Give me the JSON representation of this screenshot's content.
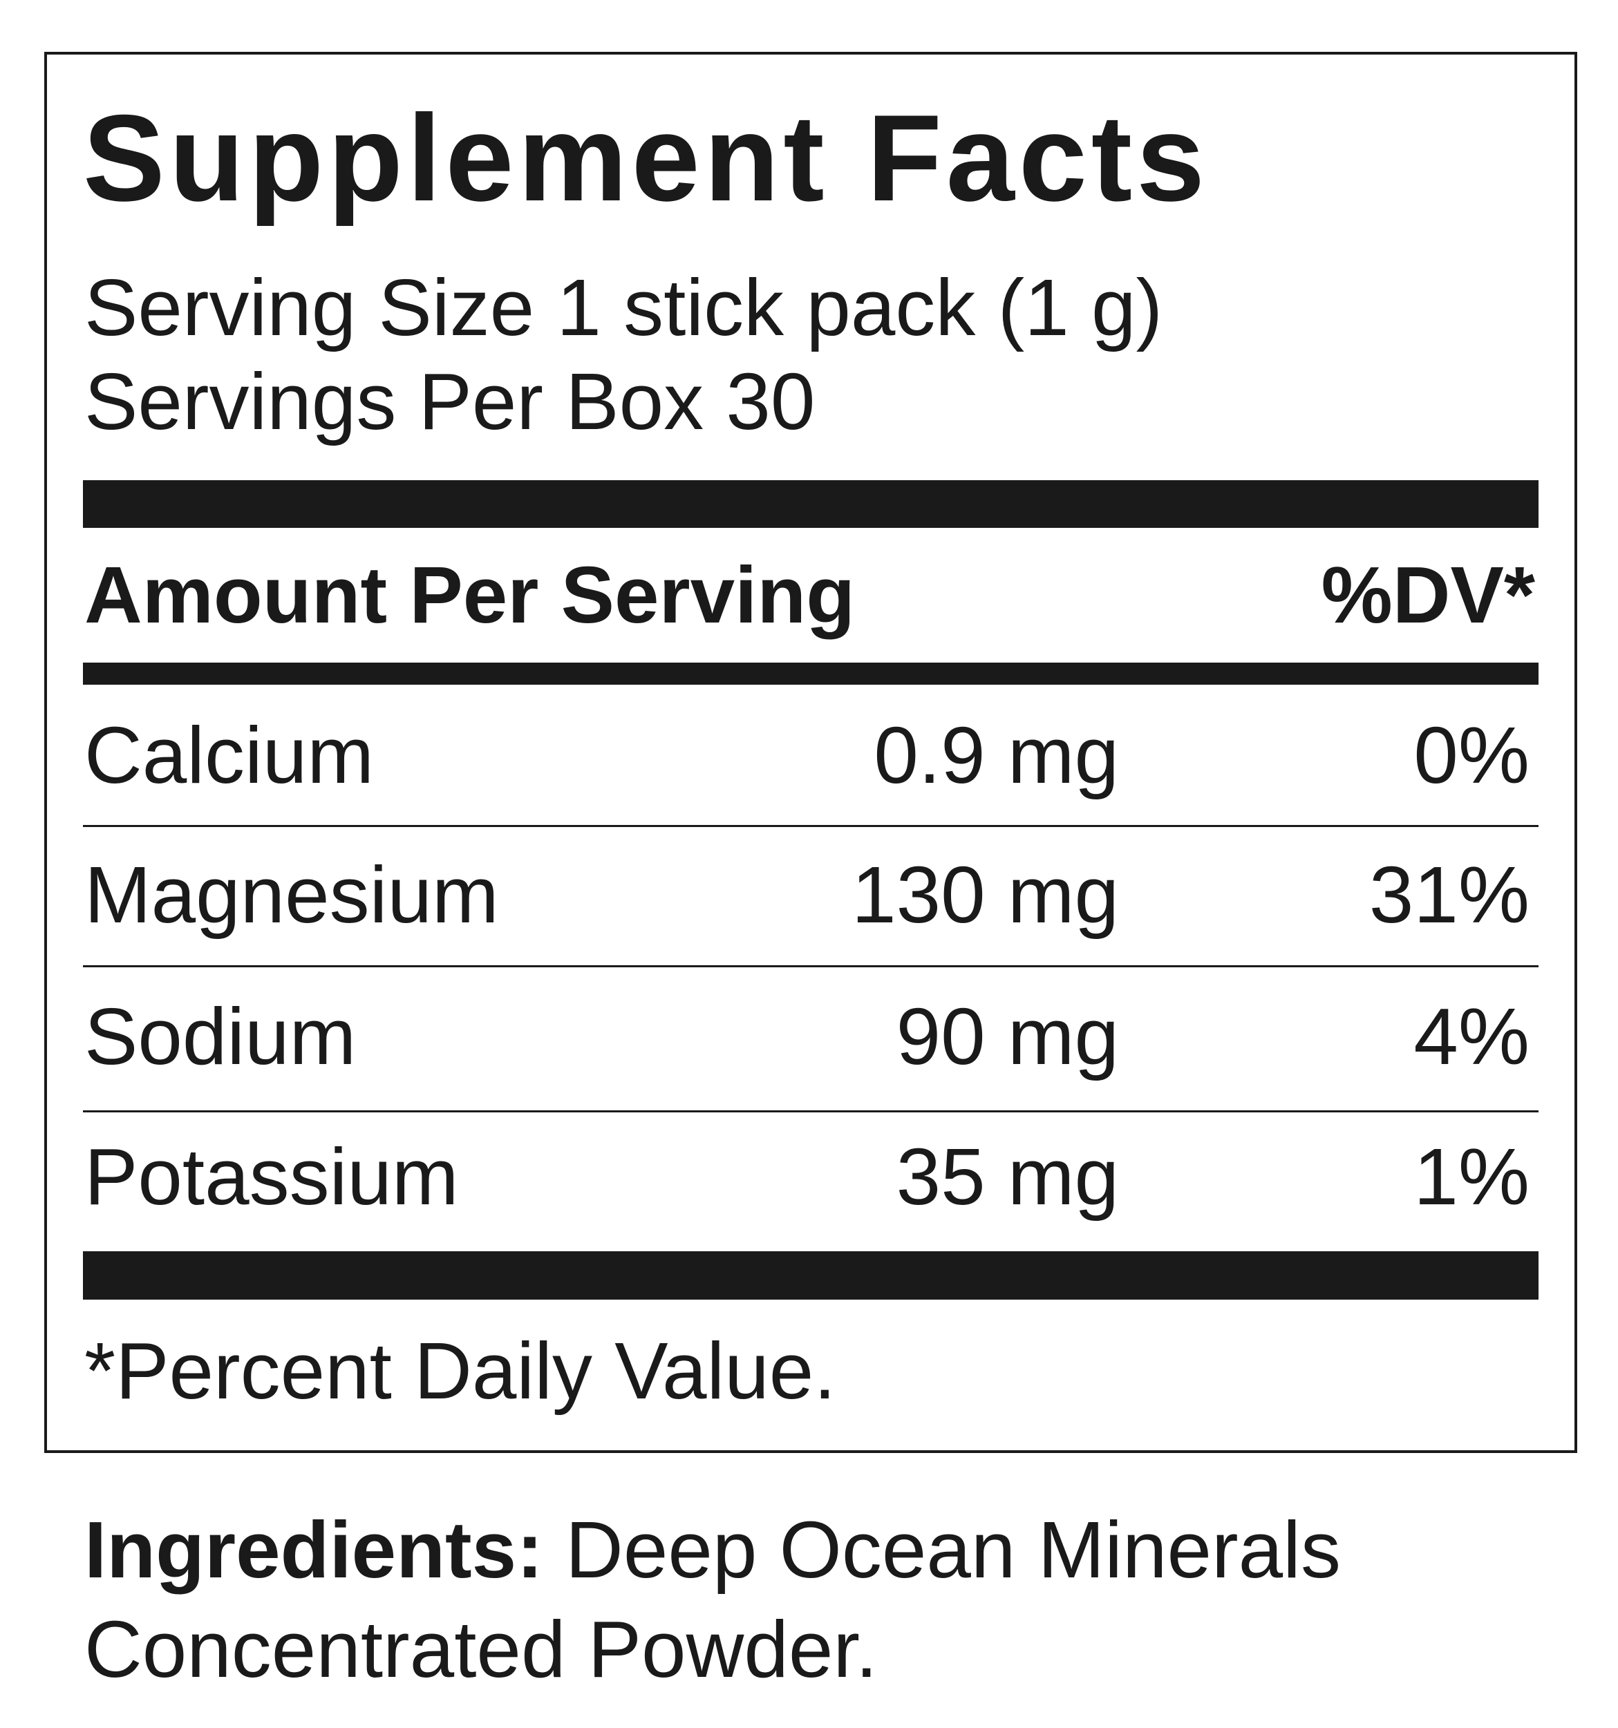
{
  "title": "Supplement Facts",
  "serving_size": "Serving Size 1 stick pack (1 g)",
  "servings_per": "Servings Per Box 30",
  "header": {
    "amount": "Amount Per Serving",
    "dv": "%DV*"
  },
  "rows": [
    {
      "name": "Calcium",
      "amount": "0.9 mg",
      "dv": "0%"
    },
    {
      "name": "Magnesium",
      "amount": "130 mg",
      "dv": "31%"
    },
    {
      "name": "Sodium",
      "amount": "90 mg",
      "dv": "4%"
    },
    {
      "name": "Potassium",
      "amount": "35 mg",
      "dv": "1%"
    }
  ],
  "footnote": "*Percent Daily Value.",
  "ingredients": {
    "label": "Ingredients:",
    "line1": " Deep Ocean Minerals",
    "line2": "Concentrated Powder."
  }
}
